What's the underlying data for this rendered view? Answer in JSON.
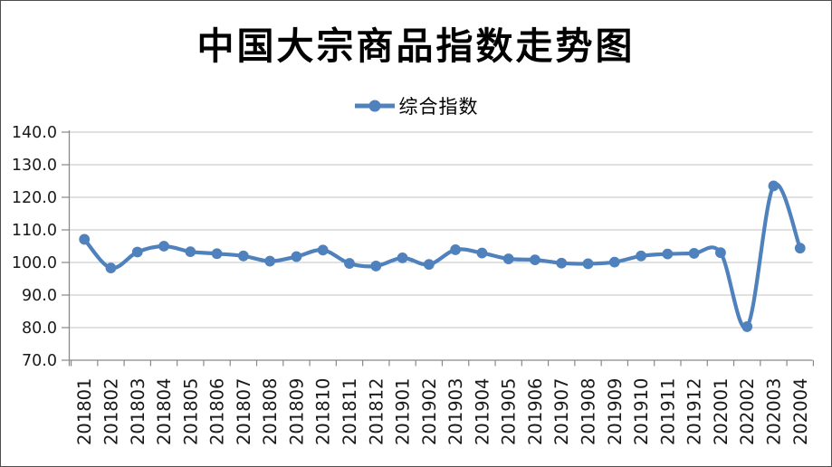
{
  "title": "中国大宗商品指数走势图",
  "legend": {
    "position": "top",
    "items": [
      {
        "label": "综合指数",
        "color": "#4F81BD",
        "marker": "line-with-circle"
      }
    ]
  },
  "chart_data": {
    "type": "line",
    "title": "中国大宗商品指数走势图",
    "xlabel": "",
    "ylabel": "",
    "ylim": [
      70,
      140
    ],
    "y_ticks": [
      70,
      80,
      90,
      100,
      110,
      120,
      130,
      140
    ],
    "y_tick_labels": [
      "70.0",
      "80.0",
      "90.0",
      "100.0",
      "110.0",
      "120.0",
      "130.0",
      "140.0"
    ],
    "grid": true,
    "smooth": true,
    "marker": "circle",
    "legend_position": "top",
    "categories": [
      "201801",
      "201802",
      "201803",
      "201804",
      "201805",
      "201806",
      "201807",
      "201808",
      "201809",
      "201810",
      "201811",
      "201812",
      "201901",
      "201902",
      "201903",
      "201904",
      "201905",
      "201906",
      "201907",
      "201908",
      "201909",
      "201910",
      "201911",
      "201912",
      "202001",
      "202002",
      "202003",
      "202004"
    ],
    "series": [
      {
        "name": "综合指数",
        "color": "#4F81BD",
        "values": [
          107.1,
          98.3,
          103.2,
          105.0,
          103.3,
          102.7,
          102.0,
          100.4,
          101.8,
          103.8,
          99.7,
          98.9,
          101.4,
          99.4,
          103.9,
          102.9,
          101.1,
          100.8,
          99.8,
          99.6,
          100.1,
          102.0,
          102.6,
          102.8,
          103.0,
          80.3,
          123.5,
          104.4
        ]
      }
    ]
  },
  "colors": {
    "series": "#4F81BD",
    "gridline": "#C3C3C3",
    "axis": "#898989",
    "tick_label": "#1a1a1a",
    "frame_border": "#4d4d4d"
  }
}
